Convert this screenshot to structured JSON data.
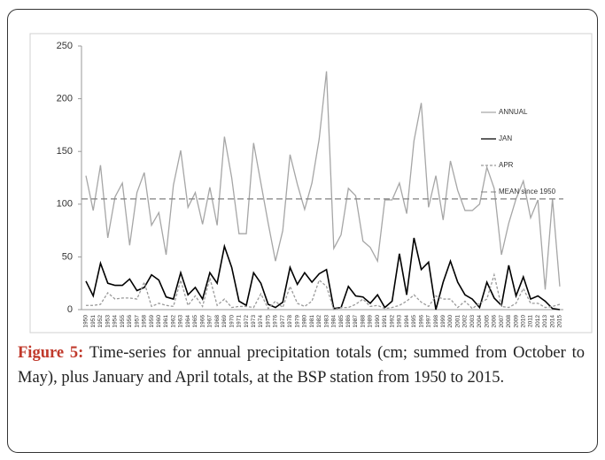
{
  "chart_data": {
    "type": "line",
    "x": [
      "1950",
      "1951",
      "1952",
      "1953",
      "1954",
      "1955",
      "1956",
      "1957",
      "1958",
      "1959",
      "1960",
      "1961",
      "1962",
      "1963",
      "1964",
      "1965",
      "1966",
      "1967",
      "1968",
      "1969",
      "1970",
      "1971",
      "1972",
      "1973",
      "1974",
      "1975",
      "1976",
      "1977",
      "1978",
      "1979",
      "1980",
      "1981",
      "1982",
      "1983",
      "1984",
      "1985",
      "1986",
      "1987",
      "1988",
      "1989",
      "1990",
      "1991",
      "1992",
      "1993",
      "1994",
      "1995",
      "1996",
      "1997",
      "1998",
      "1999",
      "2000",
      "2001",
      "2002",
      "2003",
      "2004",
      "2005",
      "2006",
      "2007",
      "2008",
      "2009",
      "2010",
      "2011",
      "2012",
      "2013",
      "2014",
      "2015"
    ],
    "series": [
      {
        "name": "ANNUAL",
        "color": "#a6a6a6",
        "dash": "none",
        "values": [
          127,
          94,
          137,
          68,
          107,
          120,
          61,
          111,
          130,
          80,
          92,
          52,
          118,
          151,
          97,
          111,
          81,
          116,
          80,
          164,
          125,
          72,
          72,
          158,
          120,
          82,
          46,
          75,
          147,
          119,
          95,
          120,
          162,
          226,
          58,
          71,
          115,
          108,
          65,
          59,
          46,
          104,
          104,
          120,
          91,
          160,
          196,
          97,
          127,
          85,
          141,
          113,
          94,
          94,
          100,
          135,
          115,
          52,
          82,
          105,
          122,
          87,
          104,
          19,
          105,
          22
        ]
      },
      {
        "name": "JAN",
        "color": "#000000",
        "dash": "none",
        "values": [
          27,
          13,
          44,
          25,
          23,
          23,
          29,
          18,
          21,
          33,
          28,
          12,
          10,
          35,
          14,
          21,
          10,
          35,
          25,
          60,
          40,
          8,
          4,
          35,
          25,
          5,
          2,
          7,
          40,
          24,
          35,
          26,
          34,
          38,
          1,
          2,
          22,
          13,
          12,
          6,
          14,
          2,
          8,
          53,
          14,
          68,
          38,
          45,
          0,
          26,
          46,
          26,
          14,
          10,
          2,
          26,
          11,
          4,
          42,
          13,
          31,
          10,
          13,
          8,
          1,
          0
        ]
      },
      {
        "name": "APR",
        "color": "#9a9a9a",
        "dash": "3,2",
        "values": [
          4,
          4,
          5,
          16,
          10,
          11,
          11,
          10,
          26,
          3,
          6,
          4,
          3,
          28,
          4,
          13,
          3,
          30,
          4,
          10,
          2,
          3,
          3,
          2,
          15,
          1,
          8,
          2,
          22,
          6,
          3,
          8,
          28,
          22,
          0,
          2,
          2,
          5,
          10,
          3,
          4,
          1,
          2,
          4,
          8,
          14,
          7,
          3,
          13,
          10,
          10,
          2,
          8,
          1,
          6,
          10,
          33,
          3,
          2,
          6,
          20,
          6,
          6,
          2,
          3,
          5
        ]
      }
    ],
    "reference_line": {
      "name": "MEAN since 1950",
      "value": 105,
      "color": "#808080",
      "dash": "7,4"
    },
    "ylim": [
      0,
      250
    ],
    "yticks": [
      0,
      50,
      100,
      150,
      200,
      250
    ],
    "grid": false
  },
  "caption": {
    "label": "Figure 5:",
    "text": "Time-series for annual precipitation totals (cm; summed from October to May), plus January and April totals, at the BSP station from 1950 to 2015."
  }
}
